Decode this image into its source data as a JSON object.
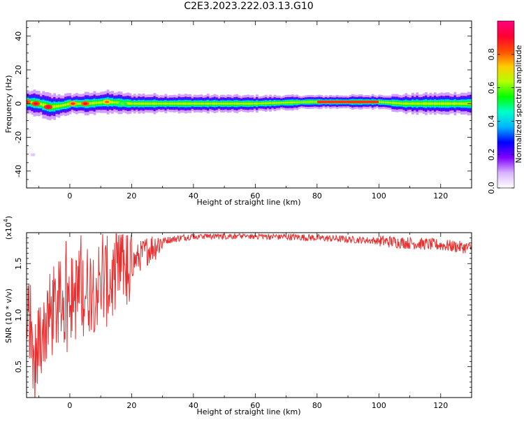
{
  "title": "C2E3.2023.222.03.13.G10",
  "chart_data": [
    {
      "type": "heatmap",
      "xlabel": "Height of straight line (km)",
      "ylabel": "Frequency (Hz)",
      "xlim": [
        -14,
        130
      ],
      "ylim": [
        -50,
        49
      ],
      "xticks": [
        "0",
        "20",
        "40",
        "60",
        "80",
        "100",
        "120"
      ],
      "yticks": [
        "-40",
        "-20",
        "0",
        "20",
        "40"
      ],
      "colorbar_label": "Normalized spectral amplitude",
      "colorbar_ticks": [
        "0.0",
        "0.2",
        "0.4",
        "0.6",
        "0.8"
      ],
      "colorbar_range": [
        0,
        1
      ],
      "colormap": [
        "#ffffff",
        "#d9b3ff",
        "#8000ff",
        "#0000ff",
        "#00b3ff",
        "#00ffcc",
        "#00ff00",
        "#b3ff00",
        "#ffcc00",
        "#ff4d00",
        "#ff0033",
        "#ff0080"
      ],
      "band": {
        "center_hz": [
          [
            -14,
            1
          ],
          [
            -10,
            0
          ],
          [
            -6,
            -2
          ],
          [
            -2,
            -1
          ],
          [
            0,
            0
          ],
          [
            6,
            0
          ],
          [
            12,
            1
          ],
          [
            20,
            0
          ],
          [
            40,
            0
          ],
          [
            60,
            0
          ],
          [
            78,
            1
          ],
          [
            90,
            1
          ],
          [
            100,
            1
          ],
          [
            108,
            0
          ],
          [
            120,
            0
          ],
          [
            130,
            0
          ]
        ],
        "halfwidth_hz": [
          [
            -14,
            3.5
          ],
          [
            -6,
            4
          ],
          [
            0,
            3
          ],
          [
            10,
            3.5
          ],
          [
            20,
            3
          ],
          [
            60,
            2.5
          ],
          [
            80,
            2
          ],
          [
            100,
            2.2
          ],
          [
            110,
            3
          ],
          [
            130,
            3.5
          ]
        ],
        "peaks": [
          [
            -14,
            1,
            0.9
          ],
          [
            -11,
            0,
            0.92
          ],
          [
            -7,
            -2,
            0.95
          ],
          [
            1,
            0,
            0.85
          ],
          [
            5,
            0,
            0.9
          ],
          [
            12,
            1,
            0.8
          ],
          [
            17,
            0,
            0.6
          ],
          [
            90,
            1,
            0.95
          ]
        ]
      }
    },
    {
      "type": "line",
      "xlabel": "Height of straight line (km)",
      "ylabel": "SNR (10 * v/v)",
      "y_multiplier": "(x10",
      "y_multiplier_exp": "4",
      "y_multiplier_close": ")",
      "xlim": [
        -14,
        130
      ],
      "ylim": [
        0.2,
        1.8
      ],
      "xticks": [
        "0",
        "20",
        "40",
        "60",
        "80",
        "100",
        "120"
      ],
      "yticks": [
        "0.5",
        "1.0",
        "1.5"
      ],
      "line_color": "#e83030",
      "trend": [
        [
          -14,
          0.8
        ],
        [
          -13,
          1.0
        ],
        [
          -12,
          0.3
        ],
        [
          -10,
          0.75
        ],
        [
          -8,
          0.9
        ],
        [
          -5,
          1.05
        ],
        [
          0,
          1.15
        ],
        [
          5,
          1.25
        ],
        [
          10,
          1.3
        ],
        [
          15,
          1.35
        ],
        [
          20,
          1.5
        ],
        [
          25,
          1.63
        ],
        [
          30,
          1.72
        ],
        [
          40,
          1.77
        ],
        [
          60,
          1.77
        ],
        [
          80,
          1.75
        ],
        [
          100,
          1.72
        ],
        [
          110,
          1.7
        ],
        [
          120,
          1.68
        ],
        [
          130,
          1.65
        ]
      ]
    }
  ]
}
